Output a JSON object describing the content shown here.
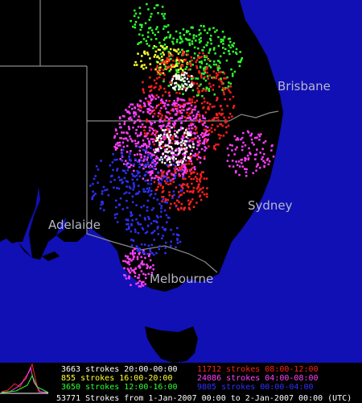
{
  "map": {
    "cities": [
      "Brisbane",
      "Sydney",
      "Adelaide",
      "Melbourne"
    ],
    "legend": {
      "left": [
        "3663 strokes 20:00-00:00",
        "855 strokes 16:00-20:00",
        "3650 strokes 12:00-16:00"
      ],
      "right": [
        "11712 strokes 08:00-12:00",
        "24086 strokes 04:00-08:00",
        "9805 strokes 00:00-04:00"
      ]
    },
    "footer": "53771 Strokes from 1-Jan-2007 00:00 to 2-Jan-2007 00:00 (UTC)"
  }
}
